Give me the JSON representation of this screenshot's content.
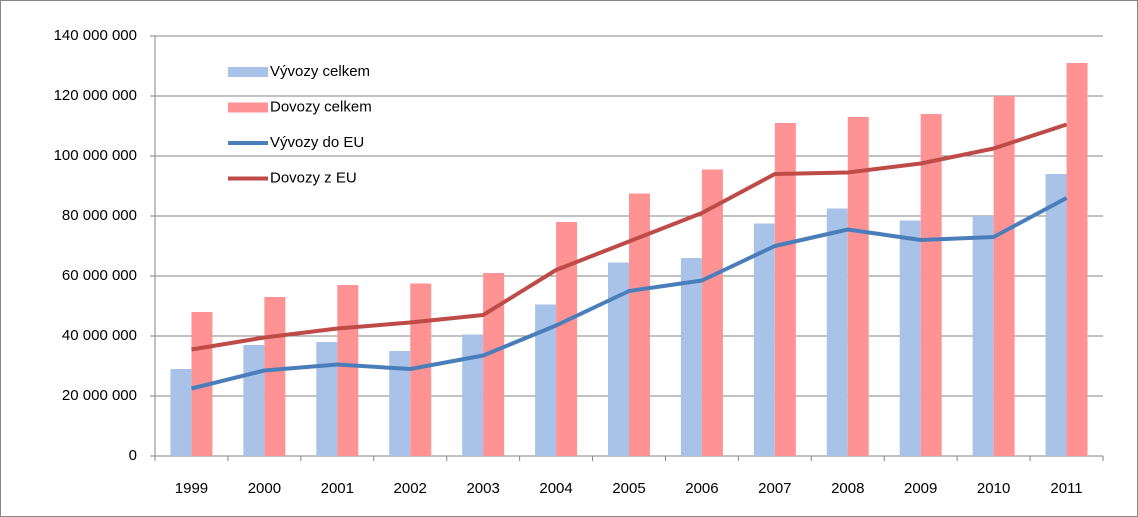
{
  "chart_data": {
    "type": "bar-line",
    "categories": [
      "1999",
      "2000",
      "2001",
      "2002",
      "2003",
      "2004",
      "2005",
      "2006",
      "2007",
      "2008",
      "2009",
      "2010",
      "2011"
    ],
    "series": [
      {
        "name": "Vývozy celkem",
        "type": "bar",
        "color": "#a9c3e8",
        "values": [
          29000000,
          37000000,
          38000000,
          35000000,
          40500000,
          50500000,
          64500000,
          66000000,
          77500000,
          82500000,
          78500000,
          80000000,
          94000000
        ]
      },
      {
        "name": "Dovozy celkem",
        "type": "bar",
        "color": "#ff9393",
        "values": [
          48000000,
          53000000,
          57000000,
          57500000,
          61000000,
          78000000,
          87500000,
          95500000,
          111000000,
          113000000,
          114000000,
          120000000,
          131000000
        ]
      },
      {
        "name": "Vývozy do EU",
        "type": "line",
        "color": "#4a7ebb",
        "values": [
          22500000,
          28500000,
          30500000,
          29000000,
          33500000,
          43500000,
          55000000,
          58500000,
          70000000,
          75500000,
          72000000,
          73000000,
          86000000
        ]
      },
      {
        "name": "Dovozy z EU",
        "type": "line",
        "color": "#be4b48",
        "values": [
          35500000,
          39500000,
          42500000,
          44500000,
          47000000,
          62000000,
          71500000,
          81000000,
          94000000,
          94500000,
          97500000,
          102500000,
          110500000
        ]
      }
    ],
    "ylim": [
      0,
      140000000
    ],
    "yticks": [
      0,
      {
        "value": 20000000,
        "label": "20 000 000"
      },
      {
        "value": 40000000,
        "label": "40 000 000"
      },
      {
        "value": 60000000,
        "label": "60 000 000"
      },
      {
        "value": 80000000,
        "label": "80 000 000"
      },
      {
        "value": 100000000,
        "label": "100 000 000"
      },
      {
        "value": 120000000,
        "label": "120 000 000"
      },
      {
        "value": 140000000,
        "label": "140 000 000"
      }
    ],
    "grid": true,
    "legend": "top-left"
  }
}
